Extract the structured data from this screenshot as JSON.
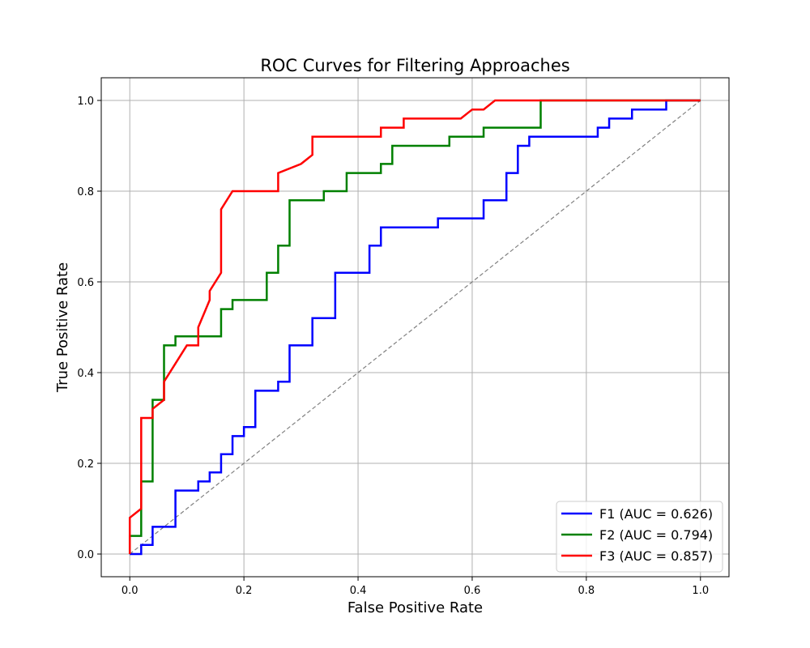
{
  "chart_data": {
    "type": "line",
    "title": "ROC Curves for Filtering Approaches",
    "xlabel": "False Positive Rate",
    "ylabel": "True Positive Rate",
    "xlim": [
      -0.05,
      1.05
    ],
    "ylim": [
      -0.05,
      1.05
    ],
    "xticks": [
      "0.0",
      "0.2",
      "0.4",
      "0.6",
      "0.8",
      "1.0"
    ],
    "yticks": [
      "0.0",
      "0.2",
      "0.4",
      "0.6",
      "0.8",
      "1.0"
    ],
    "grid": true,
    "legend_position": "lower right",
    "diagonal": {
      "x": [
        0,
        1
      ],
      "y": [
        0,
        1
      ],
      "color": "#808080",
      "style": "dashed"
    },
    "series": [
      {
        "name": "F1 (AUC = 0.626)",
        "color": "#0000ff",
        "x": [
          0,
          0.02,
          0.02,
          0.04,
          0.04,
          0.08,
          0.08,
          0.12,
          0.12,
          0.14,
          0.14,
          0.16,
          0.16,
          0.18,
          0.18,
          0.2,
          0.2,
          0.22,
          0.22,
          0.26,
          0.26,
          0.28,
          0.28,
          0.32,
          0.32,
          0.36,
          0.36,
          0.42,
          0.42,
          0.44,
          0.44,
          0.54,
          0.54,
          0.62,
          0.62,
          0.66,
          0.66,
          0.68,
          0.68,
          0.7,
          0.7,
          0.82,
          0.82,
          0.84,
          0.84,
          0.88,
          0.88,
          0.94,
          0.94,
          1.0
        ],
        "y": [
          0,
          0,
          0.02,
          0.02,
          0.06,
          0.06,
          0.14,
          0.14,
          0.16,
          0.16,
          0.18,
          0.18,
          0.22,
          0.22,
          0.26,
          0.26,
          0.28,
          0.28,
          0.36,
          0.36,
          0.38,
          0.38,
          0.46,
          0.46,
          0.52,
          0.52,
          0.62,
          0.62,
          0.68,
          0.68,
          0.72,
          0.72,
          0.74,
          0.74,
          0.78,
          0.78,
          0.84,
          0.84,
          0.9,
          0.9,
          0.92,
          0.92,
          0.94,
          0.94,
          0.96,
          0.96,
          0.98,
          0.98,
          1.0,
          1.0
        ]
      },
      {
        "name": "F2 (AUC = 0.794)",
        "color": "#008000",
        "x": [
          0,
          0,
          0.02,
          0.02,
          0.04,
          0.04,
          0.06,
          0.06,
          0.08,
          0.08,
          0.16,
          0.16,
          0.18,
          0.18,
          0.24,
          0.24,
          0.26,
          0.26,
          0.28,
          0.28,
          0.34,
          0.34,
          0.38,
          0.38,
          0.44,
          0.44,
          0.46,
          0.46,
          0.56,
          0.56,
          0.62,
          0.62,
          0.72,
          0.72,
          1.0
        ],
        "y": [
          0,
          0.04,
          0.04,
          0.16,
          0.16,
          0.34,
          0.34,
          0.46,
          0.46,
          0.48,
          0.48,
          0.54,
          0.54,
          0.56,
          0.56,
          0.62,
          0.62,
          0.68,
          0.68,
          0.78,
          0.78,
          0.8,
          0.8,
          0.84,
          0.84,
          0.86,
          0.86,
          0.9,
          0.9,
          0.92,
          0.92,
          0.94,
          0.94,
          1.0,
          1.0
        ]
      },
      {
        "name": "F3 (AUC = 0.857)",
        "color": "#ff0000",
        "x": [
          0,
          0,
          0.02,
          0.02,
          0.04,
          0.04,
          0.06,
          0.06,
          0.1,
          0.12,
          0.12,
          0.14,
          0.14,
          0.16,
          0.16,
          0.18,
          0.26,
          0.26,
          0.3,
          0.32,
          0.32,
          0.44,
          0.44,
          0.48,
          0.48,
          0.58,
          0.6,
          0.62,
          0.64,
          1.0
        ],
        "y": [
          0,
          0.08,
          0.1,
          0.3,
          0.3,
          0.32,
          0.34,
          0.38,
          0.46,
          0.46,
          0.5,
          0.56,
          0.58,
          0.62,
          0.76,
          0.8,
          0.8,
          0.84,
          0.86,
          0.88,
          0.92,
          0.92,
          0.94,
          0.94,
          0.96,
          0.96,
          0.98,
          0.98,
          1.0,
          1.0
        ]
      }
    ]
  }
}
